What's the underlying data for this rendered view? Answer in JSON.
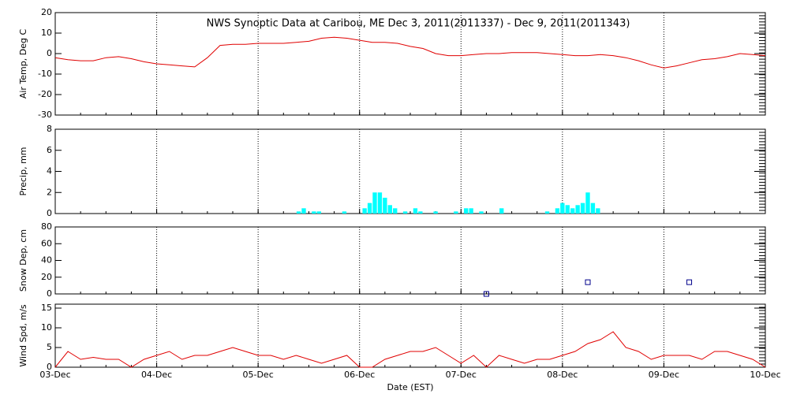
{
  "chart_data": [
    {
      "type": "line",
      "title": "NWS Synoptic Data at Caribou, ME   Dec  3, 2011(2011337) - Dec  9, 2011(2011343)",
      "y_label": "Air Temp, Deg C",
      "color": "#e00000",
      "x": [
        0,
        0.125,
        0.25,
        0.375,
        0.5,
        0.625,
        0.75,
        0.875,
        1,
        1.125,
        1.25,
        1.375,
        1.5,
        1.625,
        1.75,
        1.875,
        2,
        2.125,
        2.25,
        2.375,
        2.5,
        2.625,
        2.75,
        2.875,
        3,
        3.125,
        3.25,
        3.375,
        3.5,
        3.625,
        3.75,
        3.875,
        4,
        4.125,
        4.25,
        4.375,
        4.5,
        4.625,
        4.75,
        4.875,
        5,
        5.125,
        5.25,
        5.375,
        5.5,
        5.625,
        5.75,
        5.875,
        6,
        6.125,
        6.25,
        6.375,
        6.5,
        6.625,
        6.75,
        6.875,
        7
      ],
      "values": [
        -2,
        -3,
        -3.5,
        -3.5,
        -2,
        -1.5,
        -2.5,
        -4,
        -5,
        -5.5,
        -6,
        -6.5,
        -2,
        4,
        4.5,
        4.5,
        5,
        5,
        5,
        5.5,
        6,
        7.5,
        8,
        7.5,
        6.5,
        5.5,
        5.5,
        5,
        3.5,
        2.5,
        0,
        -1,
        -1,
        -0.5,
        0,
        0,
        0.5,
        0.5,
        0.5,
        0,
        -0.5,
        -1,
        -1,
        -0.5,
        -1,
        -2,
        -3.5,
        -5.5,
        -7,
        -6,
        -4.5,
        -3,
        -2.5,
        -1.5,
        0,
        -0.5,
        -1
      ],
      "xlim": [
        0,
        7
      ],
      "ylim": [
        -30,
        20
      ],
      "yticks": [
        -30,
        -20,
        -10,
        0,
        10,
        20
      ]
    },
    {
      "type": "bar",
      "y_label": "Precip, mm",
      "color": "#00ffff",
      "x": [
        2.4,
        2.45,
        2.55,
        2.6,
        2.85,
        3.05,
        3.1,
        3.15,
        3.2,
        3.25,
        3.3,
        3.35,
        3.45,
        3.55,
        3.6,
        3.75,
        3.95,
        4.05,
        4.1,
        4.2,
        4.4,
        4.85,
        4.95,
        5.0,
        5.05,
        5.1,
        5.15,
        5.2,
        5.25,
        5.3,
        5.35
      ],
      "values": [
        0.2,
        0.5,
        0.2,
        0.2,
        0.2,
        0.5,
        1.0,
        2.0,
        2.0,
        1.5,
        0.8,
        0.5,
        0.2,
        0.5,
        0.2,
        0.2,
        0.2,
        0.5,
        0.5,
        0.2,
        0.5,
        0.2,
        0.5,
        1.0,
        0.8,
        0.5,
        0.8,
        1.0,
        2.0,
        1.0,
        0.5
      ],
      "xlim": [
        0,
        7
      ],
      "ylim": [
        0,
        8
      ],
      "yticks": [
        0,
        2,
        4,
        6,
        8
      ]
    },
    {
      "type": "scatter",
      "y_label": "Snow Dep, cm",
      "color": "#00008b",
      "x": [
        4.25,
        5.25,
        6.25
      ],
      "values": [
        0,
        14,
        14
      ],
      "xlim": [
        0,
        7
      ],
      "ylim": [
        0,
        80
      ],
      "yticks": [
        0,
        20,
        40,
        60,
        80
      ]
    },
    {
      "type": "line",
      "y_label": "Wind Spd, m/s",
      "x_label": "Date (EST)",
      "color": "#e00000",
      "x": [
        0,
        0.125,
        0.25,
        0.375,
        0.5,
        0.625,
        0.75,
        0.875,
        1,
        1.125,
        1.25,
        1.375,
        1.5,
        1.625,
        1.75,
        1.875,
        2,
        2.125,
        2.25,
        2.375,
        2.5,
        2.625,
        2.75,
        2.875,
        3,
        3.125,
        3.25,
        3.375,
        3.5,
        3.625,
        3.75,
        3.875,
        4,
        4.125,
        4.25,
        4.375,
        4.5,
        4.625,
        4.75,
        4.875,
        5,
        5.125,
        5.25,
        5.375,
        5.5,
        5.625,
        5.75,
        5.875,
        6,
        6.125,
        6.25,
        6.375,
        6.5,
        6.625,
        6.75,
        6.875,
        7
      ],
      "values": [
        0,
        4,
        2,
        2.5,
        2,
        2,
        0,
        2,
        3,
        4,
        2,
        3,
        3,
        4,
        5,
        4,
        3,
        3,
        2,
        3,
        2,
        1,
        2,
        3,
        0,
        0,
        2,
        3,
        4,
        4,
        5,
        3,
        1,
        3,
        0,
        3,
        2,
        1,
        2,
        2,
        3,
        4,
        6,
        7,
        9,
        5,
        4,
        2,
        3,
        3,
        3,
        2,
        4,
        4,
        3,
        2,
        0
      ],
      "xlim": [
        0,
        7
      ],
      "ylim": [
        0,
        16
      ],
      "yticks": [
        0,
        5,
        10,
        15
      ],
      "xticks": [
        {
          "value": 0,
          "label": "03-Dec"
        },
        {
          "value": 1,
          "label": "04-Dec"
        },
        {
          "value": 2,
          "label": "05-Dec"
        },
        {
          "value": 3,
          "label": "06-Dec"
        },
        {
          "value": 4,
          "label": "07-Dec"
        },
        {
          "value": 5,
          "label": "08-Dec"
        },
        {
          "value": 6,
          "label": "09-Dec"
        },
        {
          "value": 7,
          "label": "10-Dec"
        }
      ]
    }
  ]
}
